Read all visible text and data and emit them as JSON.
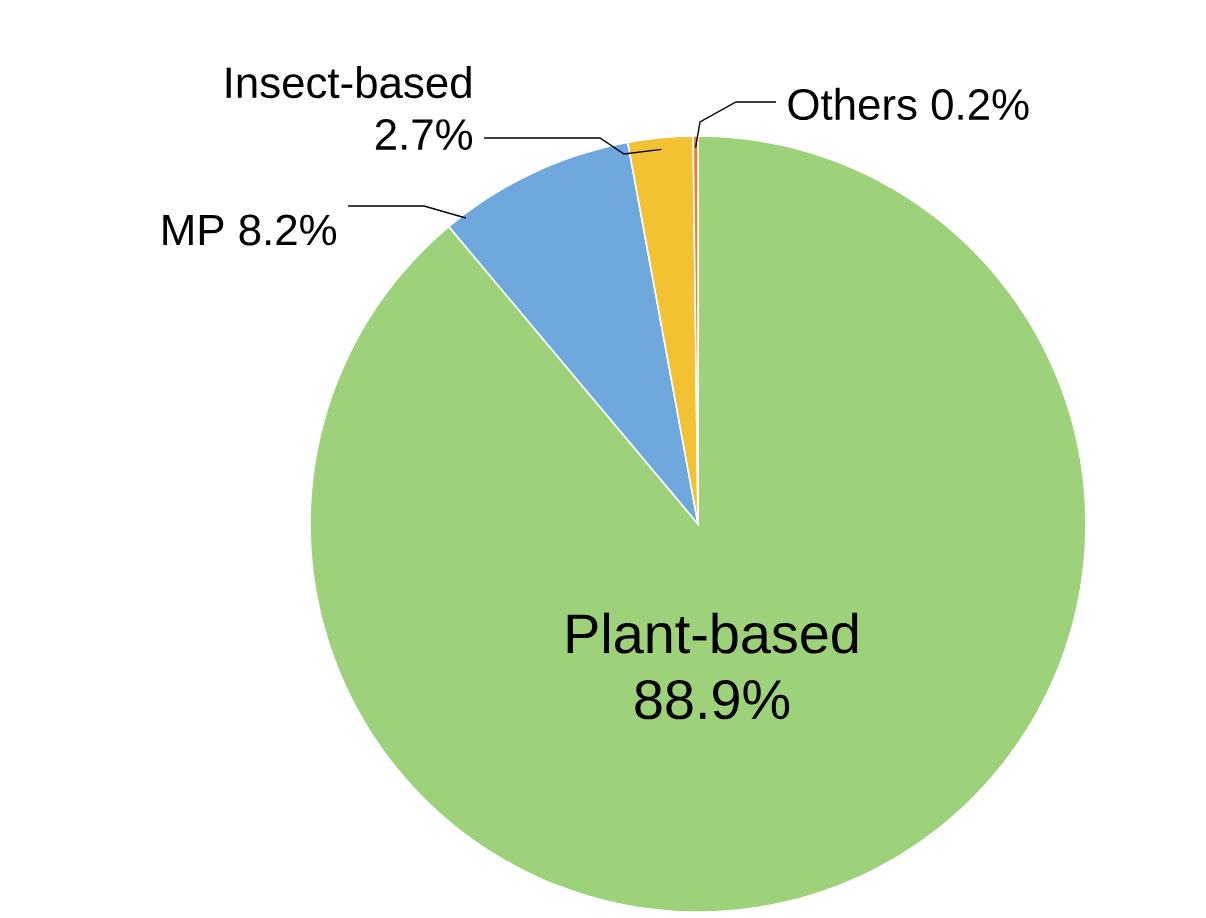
{
  "chart_data": {
    "type": "pie",
    "categories": [
      "Plant-based",
      "MP",
      "Insect-based",
      "Others"
    ],
    "values": [
      88.9,
      8.2,
      2.7,
      0.2
    ],
    "value_labels": [
      "88.9%",
      "8.2%",
      "2.7%",
      "0.2%"
    ],
    "colors": [
      "#9dd17a",
      "#6fa8dc",
      "#f2c232",
      "#ed7d31"
    ]
  }
}
